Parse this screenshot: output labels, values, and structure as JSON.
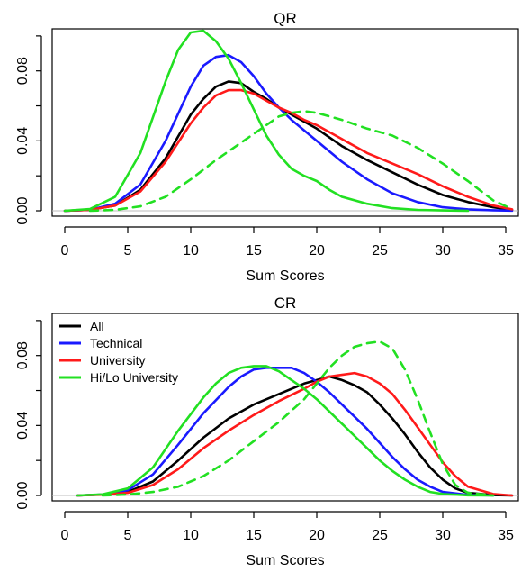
{
  "chart_data": [
    {
      "type": "line",
      "title": "QR",
      "xlabel": "Sum Scores",
      "ylabel": "",
      "xlim": [
        -1,
        36
      ],
      "ylim": [
        0,
        0.102
      ],
      "xticks": [
        "0",
        "5",
        "10",
        "15",
        "20",
        "25",
        "30",
        "35"
      ],
      "yticks": [
        "0.00",
        "0.04",
        "0.08"
      ],
      "legend": null,
      "series": [
        {
          "name": "All",
          "color": "#000000",
          "dash": "solid",
          "x": [
            0,
            2,
            4,
            6,
            8,
            10,
            11,
            12,
            13,
            14,
            15,
            16,
            17,
            18,
            19,
            20,
            22,
            24,
            26,
            28,
            30,
            32,
            34,
            35.5
          ],
          "y": [
            0,
            0.0005,
            0.003,
            0.012,
            0.03,
            0.055,
            0.064,
            0.071,
            0.074,
            0.073,
            0.068,
            0.064,
            0.059,
            0.055,
            0.051,
            0.047,
            0.037,
            0.029,
            0.022,
            0.015,
            0.009,
            0.005,
            0.002,
            0.0005
          ]
        },
        {
          "name": "Technical",
          "color": "#1a1aff",
          "dash": "solid",
          "x": [
            0,
            2,
            4,
            6,
            8,
            10,
            11,
            12,
            13,
            14,
            15,
            16,
            17,
            18,
            19,
            20,
            22,
            24,
            26,
            28,
            30,
            32,
            34,
            35.5
          ],
          "y": [
            0,
            0.0005,
            0.004,
            0.015,
            0.04,
            0.071,
            0.083,
            0.088,
            0.089,
            0.085,
            0.077,
            0.067,
            0.059,
            0.052,
            0.046,
            0.04,
            0.028,
            0.018,
            0.01,
            0.005,
            0.002,
            0.0008,
            0.0003,
            0.0001
          ]
        },
        {
          "name": "University",
          "color": "#ff1a1a",
          "dash": "solid",
          "x": [
            0,
            2,
            4,
            6,
            8,
            10,
            11,
            12,
            13,
            14,
            15,
            16,
            17,
            18,
            19,
            20,
            22,
            24,
            26,
            28,
            30,
            32,
            34,
            35.5
          ],
          "y": [
            0,
            0.0005,
            0.003,
            0.011,
            0.028,
            0.05,
            0.059,
            0.066,
            0.069,
            0.069,
            0.067,
            0.063,
            0.059,
            0.056,
            0.052,
            0.049,
            0.041,
            0.033,
            0.027,
            0.021,
            0.014,
            0.008,
            0.003,
            0.0008
          ]
        },
        {
          "name": "Hi/Lo University",
          "color": "#22e022",
          "dash": "solid",
          "x": [
            0,
            2,
            4,
            6,
            8,
            9,
            10,
            11,
            12,
            13,
            14,
            15,
            16,
            17,
            18,
            19,
            20,
            21,
            22,
            24,
            26,
            28,
            30,
            32
          ],
          "y": [
            0,
            0.001,
            0.008,
            0.033,
            0.074,
            0.092,
            0.102,
            0.103,
            0.097,
            0.087,
            0.073,
            0.058,
            0.043,
            0.032,
            0.024,
            0.02,
            0.017,
            0.012,
            0.008,
            0.004,
            0.0015,
            0.0005,
            0.0002,
            0
          ]
        },
        {
          "name": "Hi/Lo University",
          "color": "#22e022",
          "dash": "dashed",
          "x": [
            2,
            4,
            6,
            8,
            10,
            12,
            14,
            16,
            17,
            18,
            19,
            20,
            21,
            22,
            24,
            26,
            28,
            30,
            32,
            34,
            35.5
          ],
          "y": [
            0,
            0.0005,
            0.0025,
            0.008,
            0.018,
            0.029,
            0.039,
            0.049,
            0.054,
            0.056,
            0.057,
            0.056,
            0.054,
            0.052,
            0.047,
            0.043,
            0.036,
            0.027,
            0.017,
            0.006,
            0.001
          ]
        }
      ]
    },
    {
      "type": "line",
      "title": "CR",
      "xlabel": "Sum Scores",
      "ylabel": "",
      "xlim": [
        -1,
        36
      ],
      "ylim": [
        0,
        0.102
      ],
      "xticks": [
        "0",
        "5",
        "10",
        "15",
        "20",
        "25",
        "30",
        "35"
      ],
      "yticks": [
        "0.00",
        "0.04",
        "0.08"
      ],
      "legend": {
        "placement": "top-left",
        "entries": [
          {
            "label": "All",
            "color": "#000000"
          },
          {
            "label": "Technical",
            "color": "#1a1aff"
          },
          {
            "label": "University",
            "color": "#ff1a1a"
          },
          {
            "label": "Hi/Lo University",
            "color": "#22e022"
          }
        ]
      },
      "series": [
        {
          "name": "All",
          "color": "#000000",
          "dash": "solid",
          "x": [
            1,
            3,
            5,
            7,
            9,
            11,
            13,
            15,
            17,
            19,
            20,
            21,
            22,
            23,
            24,
            25,
            26,
            27,
            28,
            29,
            30,
            31,
            32,
            34,
            35.5
          ],
          "y": [
            0,
            0.0005,
            0.002,
            0.008,
            0.02,
            0.033,
            0.044,
            0.052,
            0.058,
            0.064,
            0.066,
            0.068,
            0.066,
            0.063,
            0.059,
            0.052,
            0.044,
            0.035,
            0.025,
            0.016,
            0.009,
            0.004,
            0.0015,
            0.0002,
            0
          ]
        },
        {
          "name": "Technical",
          "color": "#1a1aff",
          "dash": "solid",
          "x": [
            1,
            3,
            5,
            7,
            9,
            11,
            13,
            14,
            15,
            16,
            17,
            18,
            19,
            20,
            21,
            22,
            23,
            24,
            25,
            26,
            27,
            28,
            29,
            30,
            32,
            34
          ],
          "y": [
            0,
            0.0005,
            0.003,
            0.012,
            0.029,
            0.047,
            0.062,
            0.068,
            0.072,
            0.073,
            0.073,
            0.073,
            0.07,
            0.065,
            0.059,
            0.052,
            0.045,
            0.038,
            0.03,
            0.022,
            0.015,
            0.009,
            0.005,
            0.002,
            0.0003,
            0
          ]
        },
        {
          "name": "University",
          "color": "#ff1a1a",
          "dash": "solid",
          "x": [
            1,
            3,
            5,
            7,
            9,
            11,
            13,
            15,
            17,
            19,
            20,
            21,
            22,
            23,
            24,
            25,
            26,
            27,
            28,
            29,
            30,
            31,
            32,
            34,
            35.5
          ],
          "y": [
            0,
            0.0004,
            0.0015,
            0.006,
            0.015,
            0.027,
            0.037,
            0.046,
            0.054,
            0.061,
            0.065,
            0.068,
            0.069,
            0.07,
            0.068,
            0.064,
            0.058,
            0.049,
            0.039,
            0.029,
            0.019,
            0.011,
            0.005,
            0.0008,
            0
          ]
        },
        {
          "name": "Hi/Lo University",
          "color": "#22e022",
          "dash": "solid",
          "x": [
            1,
            3,
            5,
            7,
            9,
            11,
            12,
            13,
            14,
            15,
            16,
            17,
            18,
            19,
            20,
            21,
            22,
            23,
            24,
            25,
            26,
            27,
            28,
            29,
            30,
            32,
            34
          ],
          "y": [
            0,
            0.0006,
            0.004,
            0.016,
            0.037,
            0.056,
            0.064,
            0.07,
            0.073,
            0.074,
            0.074,
            0.071,
            0.066,
            0.061,
            0.055,
            0.048,
            0.041,
            0.034,
            0.027,
            0.02,
            0.014,
            0.009,
            0.005,
            0.002,
            0.0008,
            0.0001,
            0
          ]
        },
        {
          "name": "Hi/Lo University",
          "color": "#22e022",
          "dash": "dashed",
          "x": [
            3,
            5,
            7,
            9,
            11,
            13,
            15,
            17,
            19,
            20,
            21,
            22,
            23,
            24,
            25,
            26,
            27,
            28,
            29,
            30,
            31,
            32,
            34
          ],
          "y": [
            0,
            0.0005,
            0.002,
            0.005,
            0.011,
            0.02,
            0.031,
            0.042,
            0.055,
            0.064,
            0.073,
            0.08,
            0.085,
            0.087,
            0.088,
            0.084,
            0.072,
            0.055,
            0.036,
            0.018,
            0.006,
            0.0015,
            0
          ]
        }
      ]
    }
  ]
}
